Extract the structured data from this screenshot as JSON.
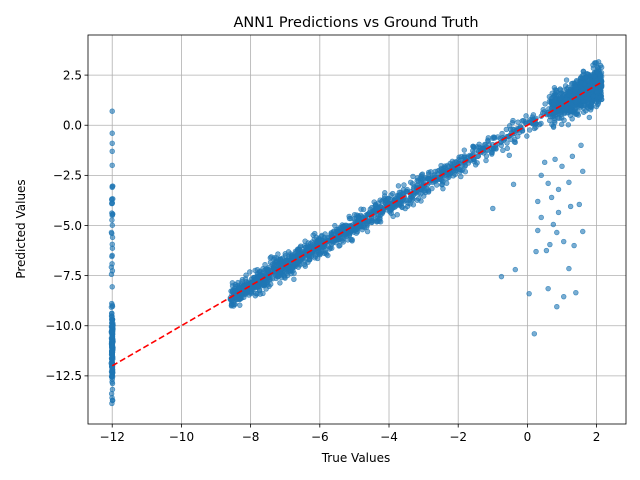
{
  "chart_data": {
    "type": "scatter",
    "title": "ANN1 Predictions vs Ground Truth",
    "xlabel": "True Values",
    "ylabel": "Predicted Values",
    "xlim": [
      -12.7,
      2.85
    ],
    "ylim": [
      -14.9,
      4.5
    ],
    "xticks": [
      -12,
      -10,
      -8,
      -6,
      -4,
      -2,
      0,
      2
    ],
    "yticks": [
      -12.5,
      -10.0,
      -7.5,
      -5.0,
      -2.5,
      0.0,
      2.5
    ],
    "xtick_labels": [
      "−12",
      "−10",
      "−8",
      "−6",
      "−4",
      "−2",
      "0",
      "2"
    ],
    "ytick_labels": [
      "−12.5",
      "−10.0",
      "−7.5",
      "−5.0",
      "−2.5",
      "0.0",
      "2.5"
    ],
    "grid": true,
    "point_color": "#1f77b4",
    "point_alpha": 0.6,
    "reference_line": {
      "style": "dashed",
      "color": "#ff0000",
      "points": [
        [
          -12,
          -12
        ],
        [
          2.1,
          2.1
        ]
      ]
    },
    "series": [
      {
        "clusters": [
          {
            "desc": "column",
            "x": [
              -12,
              -12
            ],
            "y": [
              -13.9,
              0.7
            ],
            "n": 230
          },
          {
            "desc": "diagonal",
            "x": [
              -8.6,
              2.1
            ],
            "n": 1300
          },
          {
            "desc": "dense",
            "x": [
              0.6,
              2.15
            ],
            "y": [
              0.2,
              3.6
            ],
            "n": 700
          }
        ],
        "outliers": [
          [
            0.2,
            -10.4
          ],
          [
            0.85,
            -9.05
          ],
          [
            1.05,
            -8.55
          ],
          [
            1.4,
            -8.35
          ],
          [
            0.6,
            -8.15
          ],
          [
            0.05,
            -8.4
          ],
          [
            -0.75,
            -7.55
          ],
          [
            -0.35,
            -7.2
          ],
          [
            1.2,
            -7.15
          ],
          [
            0.55,
            -6.25
          ],
          [
            0.25,
            -6.3
          ],
          [
            1.35,
            -6.0
          ],
          [
            0.65,
            -5.95
          ],
          [
            1.05,
            -5.8
          ],
          [
            0.85,
            -5.35
          ],
          [
            0.3,
            -5.25
          ],
          [
            1.6,
            -5.3
          ],
          [
            0.75,
            -4.95
          ],
          [
            0.4,
            -4.6
          ],
          [
            0.9,
            -4.35
          ],
          [
            1.25,
            -4.05
          ],
          [
            -1.0,
            -4.15
          ],
          [
            0.3,
            -3.8
          ],
          [
            0.7,
            -3.6
          ],
          [
            1.5,
            -3.95
          ],
          [
            0.9,
            -3.2
          ],
          [
            -0.4,
            -2.95
          ],
          [
            0.6,
            -2.9
          ],
          [
            1.2,
            -2.85
          ],
          [
            0.4,
            -2.5
          ],
          [
            1.6,
            -2.3
          ],
          [
            1.0,
            -2.05
          ],
          [
            0.8,
            -1.7
          ],
          [
            1.3,
            -1.55
          ],
          [
            0.5,
            -1.85
          ],
          [
            1.55,
            -1.0
          ]
        ]
      }
    ]
  }
}
